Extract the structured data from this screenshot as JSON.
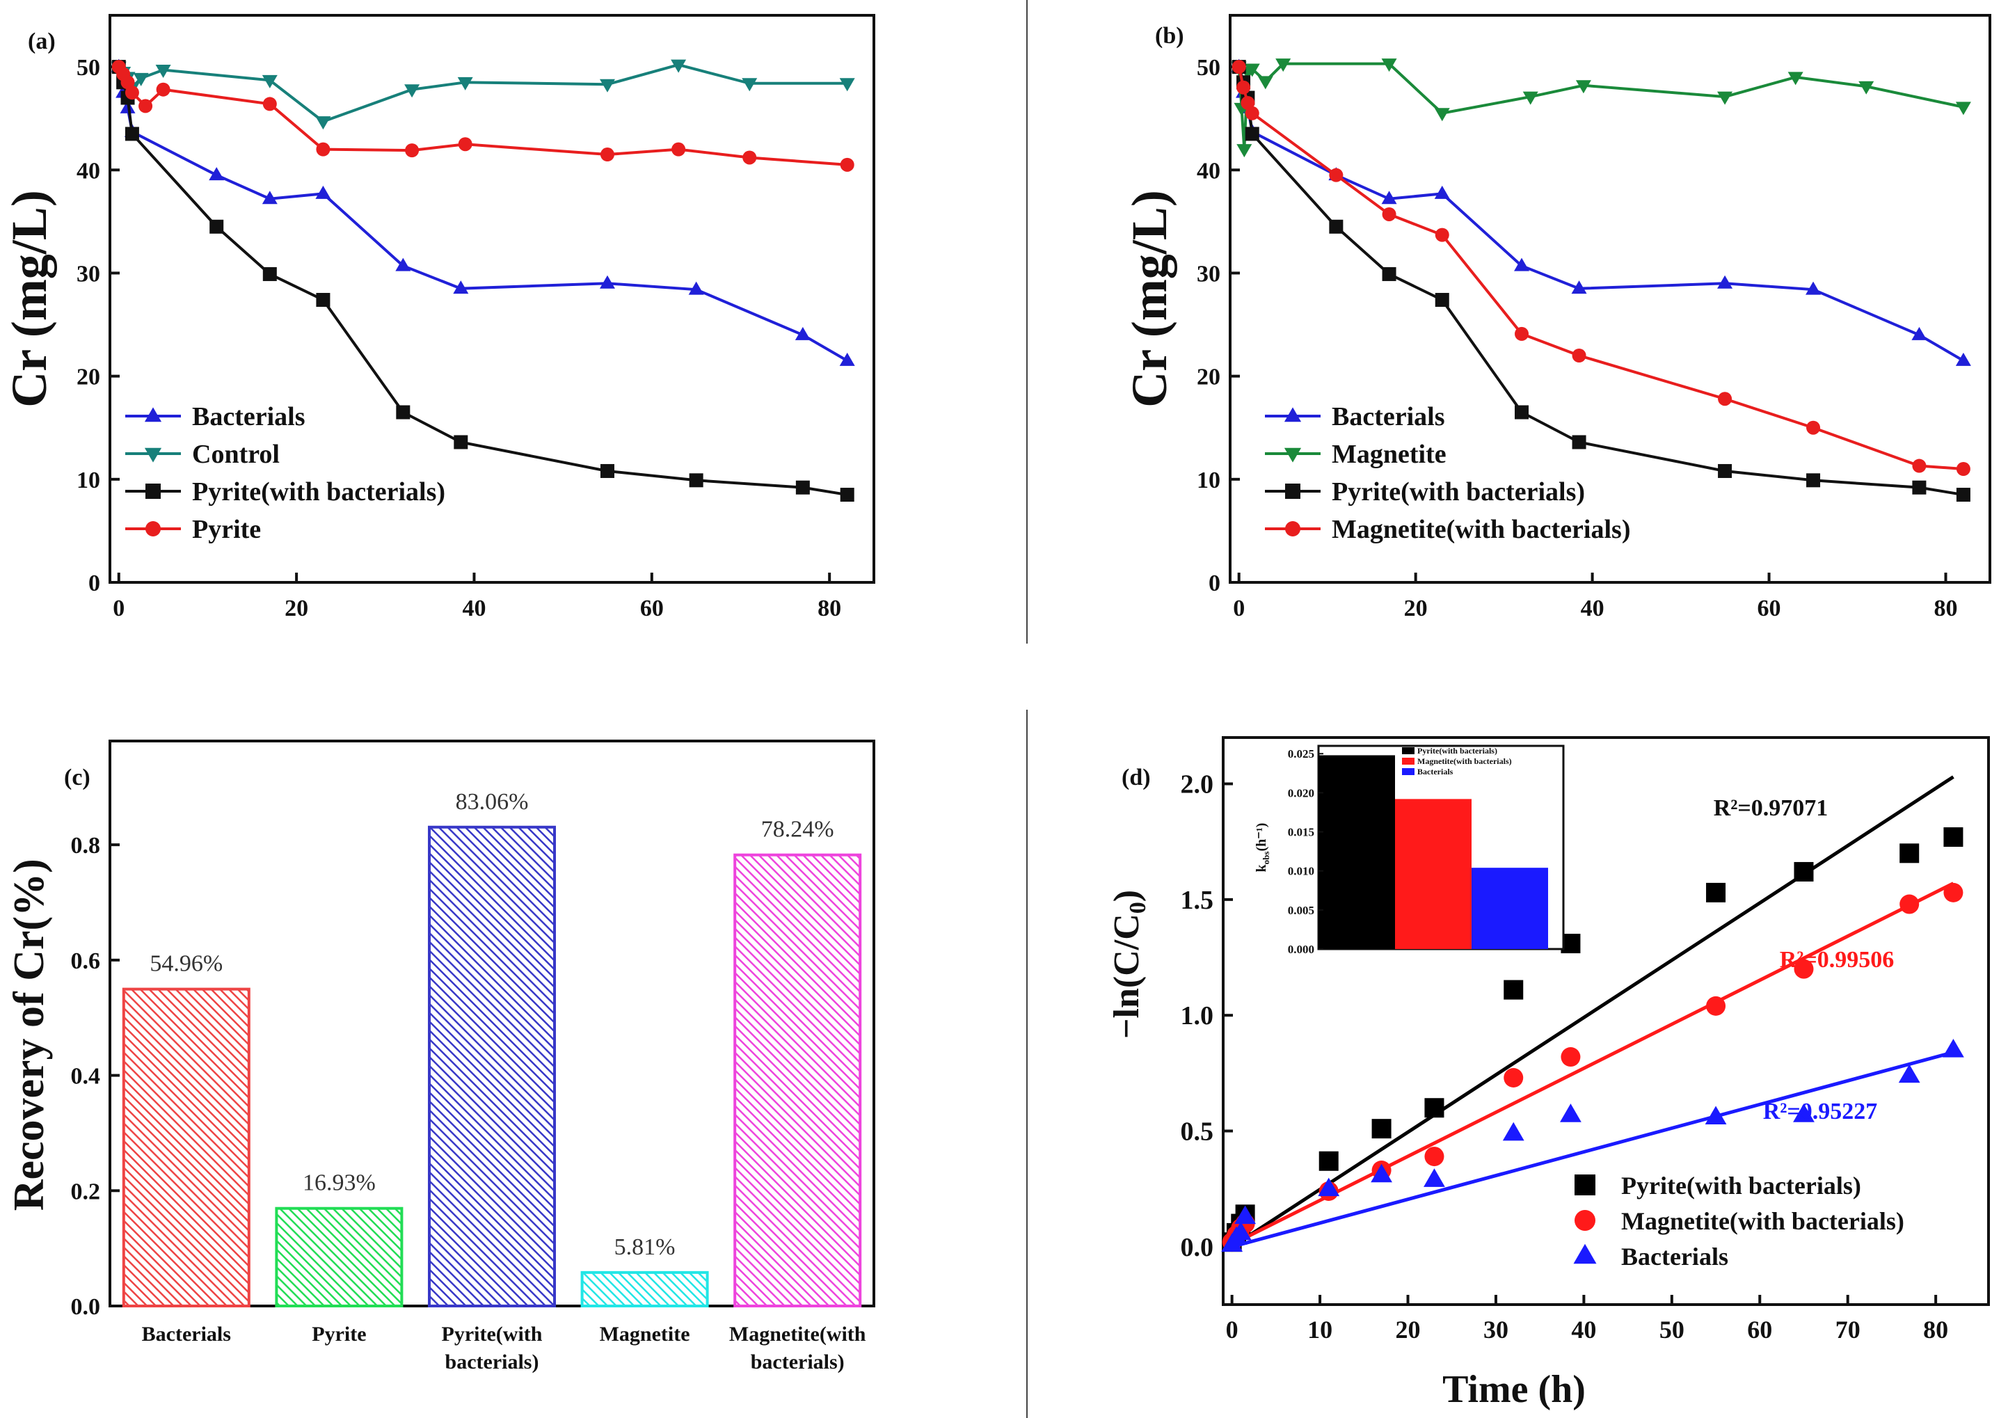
{
  "figure": {
    "colors": {
      "axis": "#111111",
      "bacterials": "#2020d8",
      "control": "#17807a",
      "pyrite_wb": "#111111",
      "pyrite": "#e81e1e",
      "magnetite": "#1a8a3a",
      "magnetite_wb": "#e81e1e",
      "bar_red": "#ee4444",
      "bar_green": "#22dd55",
      "bar_blue": "#3838c8",
      "bar_cyan": "#22e6e6",
      "bar_magenta": "#ee44dd",
      "fit_black": "#000000",
      "fit_red": "#ff1a1a",
      "fit_blue": "#1a1aff"
    }
  },
  "chart_data": [
    {
      "id": "a",
      "panel_label": "(a)",
      "type": "line",
      "ylabel": "Cr (mg/L)",
      "xlabel": "",
      "xlim": [
        -1,
        85
      ],
      "ylim": [
        0,
        55
      ],
      "xticks": [
        "0",
        "20",
        "40",
        "60",
        "80"
      ],
      "yticks": [
        "0",
        "10",
        "20",
        "30",
        "40",
        "50"
      ],
      "series": [
        {
          "name": "Bacterials",
          "marker": "triangle-up",
          "color_key": "bacterials",
          "x": [
            0,
            0.5,
            1,
            1.5,
            11,
            17,
            23,
            32,
            38.5,
            55,
            65,
            77,
            82
          ],
          "y": [
            50,
            47.5,
            46,
            43.7,
            39.5,
            37.2,
            37.7,
            30.7,
            28.5,
            29,
            28.4,
            24,
            21.5
          ]
        },
        {
          "name": "Control",
          "marker": "triangle-down",
          "color_key": "control",
          "x": [
            0,
            0.5,
            1,
            1.5,
            2.5,
            5,
            17,
            23,
            33,
            39,
            55,
            63,
            71,
            82
          ],
          "y": [
            50,
            49.5,
            49,
            48,
            48.9,
            49.7,
            48.7,
            44.7,
            47.8,
            48.5,
            48.3,
            50.2,
            48.4,
            48.4
          ]
        },
        {
          "name": "Pyrite(with bacterials)",
          "marker": "square",
          "color_key": "pyrite_wb",
          "x": [
            0,
            0.5,
            1,
            1.5,
            11,
            17,
            23,
            32,
            38.5,
            55,
            65,
            77,
            82
          ],
          "y": [
            50,
            48.5,
            47,
            43.5,
            34.5,
            29.9,
            27.4,
            16.5,
            13.6,
            10.8,
            9.9,
            9.2,
            8.5
          ]
        },
        {
          "name": "Pyrite",
          "marker": "circle",
          "color_key": "pyrite",
          "x": [
            0,
            0.5,
            1,
            1.5,
            3,
            5,
            17,
            23,
            33,
            39,
            55,
            63,
            71,
            82
          ],
          "y": [
            50,
            49.3,
            48.5,
            47.5,
            46.2,
            47.8,
            46.4,
            42,
            41.9,
            42.5,
            41.5,
            42,
            41.2,
            40.5
          ]
        }
      ]
    },
    {
      "id": "b",
      "panel_label": "(b)",
      "type": "line",
      "ylabel": "Cr (mg/L)",
      "xlabel": "",
      "xlim": [
        -1,
        85
      ],
      "ylim": [
        0,
        55
      ],
      "xticks": [
        "0",
        "20",
        "40",
        "60",
        "80"
      ],
      "yticks": [
        "0",
        "10",
        "20",
        "30",
        "40",
        "50"
      ],
      "series": [
        {
          "name": "Bacterials",
          "marker": "triangle-up",
          "color_key": "bacterials",
          "x": [
            0,
            0.5,
            1,
            1.5,
            11,
            17,
            23,
            32,
            38.5,
            55,
            65,
            77,
            82
          ],
          "y": [
            50,
            47.5,
            46,
            43.7,
            39.5,
            37.2,
            37.7,
            30.7,
            28.5,
            29,
            28.4,
            24,
            21.5
          ]
        },
        {
          "name": "Magnetite",
          "marker": "triangle-down",
          "color_key": "magnetite",
          "x": [
            0,
            0.3,
            0.6,
            1,
            1.5,
            3,
            5,
            17,
            23,
            33,
            39,
            55,
            63,
            71,
            82
          ],
          "y": [
            50,
            46,
            42,
            49.5,
            49.8,
            48.6,
            50.3,
            50.3,
            45.5,
            47.1,
            48.2,
            47.1,
            49,
            48.1,
            46.1
          ]
        },
        {
          "name": "Pyrite(with bacterials)",
          "marker": "square",
          "color_key": "pyrite_wb",
          "x": [
            0,
            0.5,
            1,
            1.5,
            11,
            17,
            23,
            32,
            38.5,
            55,
            65,
            77,
            82
          ],
          "y": [
            50,
            48.5,
            47,
            43.5,
            34.5,
            29.9,
            27.4,
            16.5,
            13.6,
            10.8,
            9.9,
            9.2,
            8.5
          ]
        },
        {
          "name": "Magnetite(with bacterials)",
          "marker": "circle",
          "color_key": "magnetite_wb",
          "x": [
            0,
            0.5,
            1,
            1.5,
            11,
            17,
            23,
            32,
            38.5,
            55,
            65,
            77,
            82
          ],
          "y": [
            50,
            48,
            46.5,
            45.5,
            39.5,
            35.7,
            33.7,
            24.1,
            22,
            17.8,
            15,
            11.3,
            11
          ]
        }
      ]
    },
    {
      "id": "c",
      "panel_label": "(c)",
      "type": "bar",
      "ylabel": "Recovery of Cr(%)",
      "ylim": [
        0,
        0.98
      ],
      "yticks": [
        "0.0",
        "0.2",
        "0.4",
        "0.6",
        "0.8"
      ],
      "categories": [
        [
          "Bacterials"
        ],
        [
          "Pyrite"
        ],
        [
          "Pyrite(with",
          "bacterials)"
        ],
        [
          "Magnetite"
        ],
        [
          "Magnetite(with",
          "bacterials)"
        ]
      ],
      "values": [
        0.5496,
        0.1693,
        0.8306,
        0.0581,
        0.7824
      ],
      "labels": [
        "54.96%",
        "16.93%",
        "83.06%",
        "5.81%",
        "78.24%"
      ],
      "color_keys": [
        "bar_red",
        "bar_green",
        "bar_blue",
        "bar_cyan",
        "bar_magenta"
      ]
    },
    {
      "id": "d",
      "panel_label": "(d)",
      "type": "scatter",
      "xlabel": "Time (h)",
      "ylabel": "−ln(C/C",
      "ylabel_sub": "0",
      "ylabel_tail": ")",
      "xlim": [
        -1,
        86
      ],
      "ylim": [
        -0.25,
        2.2
      ],
      "xticks": [
        "0",
        "10",
        "20",
        "30",
        "40",
        "50",
        "60",
        "70",
        "80"
      ],
      "yticks": [
        "0.0",
        "0.5",
        "1.0",
        "1.5",
        "2.0"
      ],
      "series": [
        {
          "name": "Pyrite(with bacterials)",
          "marker": "square",
          "color_key": "fit_black",
          "x": [
            0,
            0.5,
            1,
            1.5,
            11,
            17,
            23,
            32,
            38.5,
            55,
            65,
            77,
            82
          ],
          "y": [
            0.02,
            0.06,
            0.1,
            0.14,
            0.37,
            0.51,
            0.6,
            1.11,
            1.31,
            1.53,
            1.62,
            1.7,
            1.77
          ],
          "fit": {
            "x": [
              0,
              82
            ],
            "y": [
              0,
              2.03
            ]
          },
          "r2": "R²=0.97071"
        },
        {
          "name": "Magnetite(with bacterials)",
          "marker": "circle",
          "color_key": "fit_red",
          "x": [
            0,
            0.5,
            1,
            1.5,
            11,
            17,
            23,
            32,
            38.5,
            55,
            65,
            77,
            82
          ],
          "y": [
            0.02,
            0.05,
            0.08,
            0.1,
            0.24,
            0.33,
            0.39,
            0.73,
            0.82,
            1.04,
            1.2,
            1.48,
            1.53
          ],
          "fit": {
            "x": [
              0,
              82
            ],
            "y": [
              0.01,
              1.57
            ]
          },
          "r2": "R²=0.99506"
        },
        {
          "name": "Bacterials",
          "marker": "triangle-up",
          "color_key": "fit_blue",
          "x": [
            0,
            0.5,
            1,
            1.5,
            11,
            17,
            23,
            32,
            38.5,
            55,
            65,
            77,
            82
          ],
          "y": [
            0.01,
            0.04,
            0.06,
            0.13,
            0.25,
            0.31,
            0.29,
            0.49,
            0.57,
            0.56,
            0.57,
            0.74,
            0.85
          ],
          "fit": {
            "x": [
              0,
              82
            ],
            "y": [
              0,
              0.84
            ]
          },
          "r2": "R²=0.95227"
        }
      ],
      "inset": {
        "type": "bar",
        "ylabel": "k",
        "ylabel_sub": "obs",
        "ylabel_tail": "(h⁻¹)",
        "ylim": [
          0,
          0.026
        ],
        "yticks": [
          "0.000",
          "0.005",
          "0.010",
          "0.015",
          "0.020",
          "0.025"
        ],
        "categories": [
          "Pyrite(with bacterials)",
          "Magnetite(with bacterials)",
          "Bacterials"
        ],
        "values": [
          0.0248,
          0.0192,
          0.0104
        ],
        "color_keys": [
          "fit_black",
          "fit_red",
          "fit_blue"
        ]
      }
    }
  ]
}
